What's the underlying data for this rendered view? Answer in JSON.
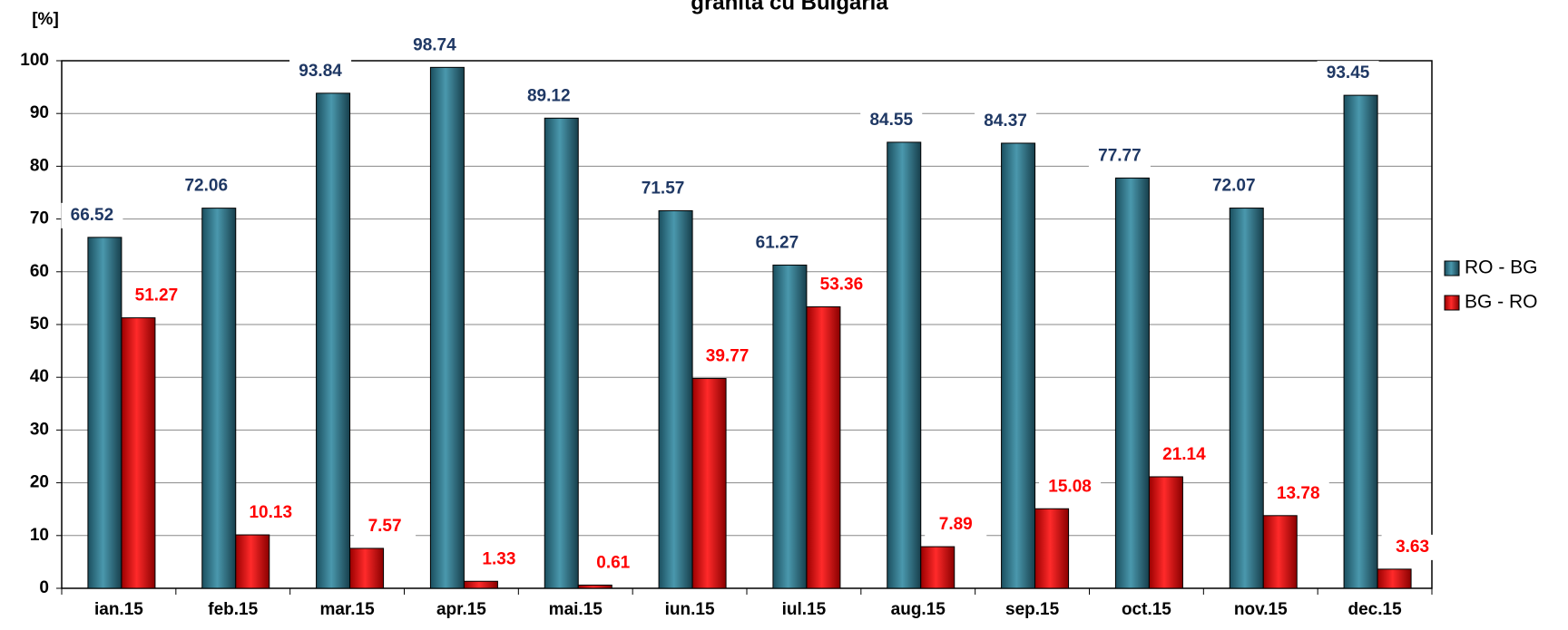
{
  "chart_data": {
    "type": "bar",
    "title": "granita cu Bulgaria",
    "y_label": "[%]",
    "categories": [
      "ian.15",
      "feb.15",
      "mar.15",
      "apr.15",
      "mai.15",
      "iun.15",
      "iul.15",
      "aug.15",
      "sep.15",
      "oct.15",
      "nov.15",
      "dec.15"
    ],
    "series": [
      {
        "name": "RO - BG",
        "color": "#2b6f84",
        "label_color": "#1f3864",
        "values": [
          66.52,
          72.06,
          93.84,
          98.74,
          89.12,
          71.57,
          61.27,
          84.55,
          84.37,
          77.77,
          72.07,
          93.45
        ]
      },
      {
        "name": "BG - RO",
        "color": "#e00000",
        "label_color": "#ff0000",
        "values": [
          51.27,
          10.13,
          7.57,
          1.33,
          0.61,
          39.77,
          53.36,
          7.89,
          15.08,
          21.14,
          13.78,
          3.63
        ]
      }
    ],
    "ylim": [
      0,
      100
    ],
    "yticks": [
      0,
      10,
      20,
      30,
      40,
      50,
      60,
      70,
      80,
      90,
      100
    ],
    "grid": true,
    "legend": "right"
  }
}
